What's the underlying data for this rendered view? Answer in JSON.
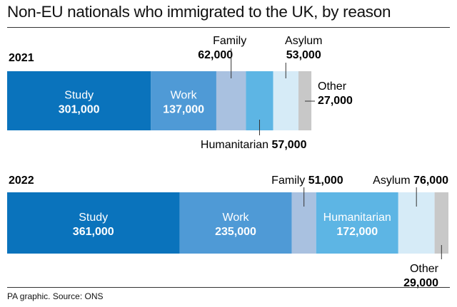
{
  "title": "Non-EU nationals who immigrated to the UK, by reason",
  "source": "PA graphic. Source: ONS",
  "colors": {
    "Study": "#0a73bc",
    "Work": "#4f9ad6",
    "Family": "#a9c1e0",
    "Humanitarian": "#5db5e4",
    "Asylum": "#d6ebf7",
    "Other": "#c8c8c8"
  },
  "chart_data": {
    "type": "bar",
    "orientation": "horizontal-stacked",
    "title": "Non-EU nationals who immigrated to the UK, by reason",
    "categories": [
      "2021",
      "2022"
    ],
    "series": [
      {
        "name": "Study",
        "values": [
          301000,
          361000
        ],
        "display": [
          "301,000",
          "361,000"
        ]
      },
      {
        "name": "Work",
        "values": [
          137000,
          235000
        ],
        "display": [
          "137,000",
          "235,000"
        ]
      },
      {
        "name": "Family",
        "values": [
          62000,
          51000
        ],
        "display": [
          "62,000",
          "51,000"
        ]
      },
      {
        "name": "Humanitarian",
        "values": [
          57000,
          172000
        ],
        "display": [
          "57,000",
          "172,000"
        ]
      },
      {
        "name": "Asylum",
        "values": [
          53000,
          76000
        ],
        "display": [
          "53,000",
          "76,000"
        ]
      },
      {
        "name": "Other",
        "values": [
          27000,
          29000
        ],
        "display": [
          "27,000",
          "29,000"
        ]
      }
    ]
  }
}
